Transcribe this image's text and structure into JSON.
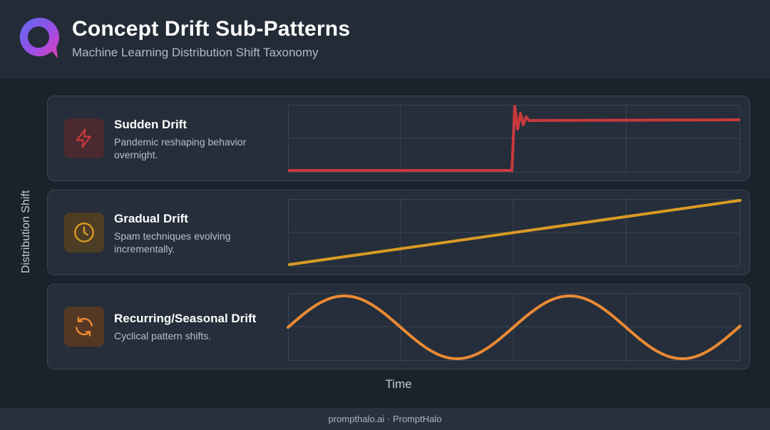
{
  "header": {
    "title": "Concept Drift Sub-Patterns",
    "subtitle": "Machine Learning Distribution Shift Taxonomy",
    "logo_icon": "promphalo-ring-icon"
  },
  "axes": {
    "y_label": "Distribution Shift",
    "x_label": "Time"
  },
  "patterns": [
    {
      "title": "Sudden Drift",
      "description": "Pandemic reshaping behavior overnight.",
      "icon": "lightning-bolt-icon",
      "color": "#c9393c",
      "icon_bg": "#4a2a30"
    },
    {
      "title": "Gradual Drift",
      "description": "Spam techniques evolving incrementally.",
      "icon": "clock-icon",
      "color": "#d99a25",
      "icon_bg": "#4d3d24"
    },
    {
      "title": "Recurring/Seasonal Drift",
      "description": "Cyclical pattern shifts.",
      "icon": "refresh-cycle-icon",
      "color": "#ea8a34",
      "icon_bg": "#553824"
    }
  ],
  "footer": {
    "text": "prompthalo.ai · PromptHalo"
  }
}
